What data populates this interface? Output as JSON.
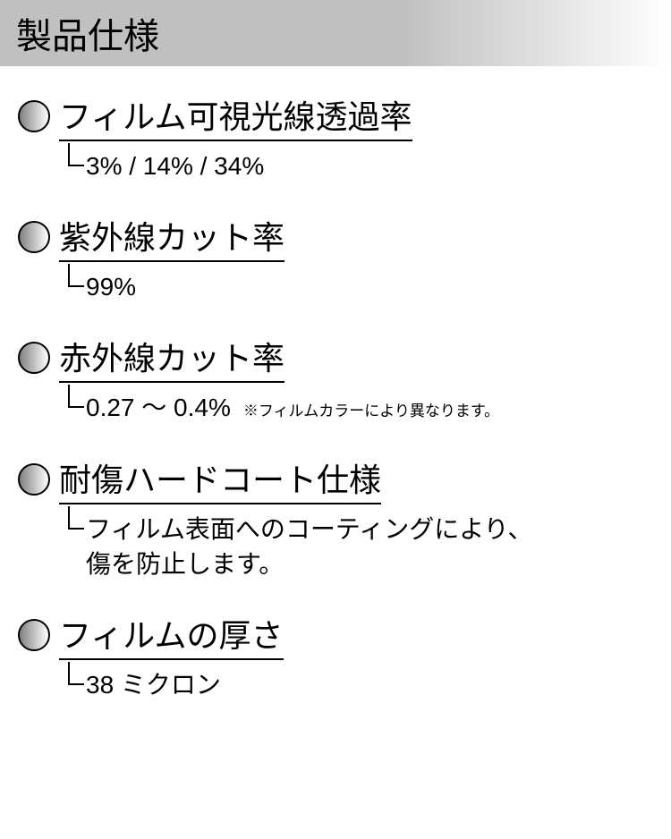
{
  "header": {
    "title": "製品仕様"
  },
  "specs": [
    {
      "title": "フィルム可視光線透過率",
      "value": "3% / 14% / 34%",
      "note": ""
    },
    {
      "title": "紫外線カット率",
      "value": "99%",
      "note": ""
    },
    {
      "title": "赤外線カット率",
      "value": "0.27 〜 0.4%",
      "note": "※フィルムカラーにより異なります。"
    },
    {
      "title": "耐傷ハードコート仕様",
      "value": "フィルム表面へのコーティングにより、\n傷を防止します。",
      "note": ""
    },
    {
      "title": "フィルムの厚さ",
      "value": "38 ミクロン",
      "note": ""
    }
  ],
  "colors": {
    "header_gradient_start": "#c0c0c0",
    "header_gradient_end": "#ffffff",
    "bullet_gradient_start": "#808080",
    "bullet_gradient_end": "#ffffff",
    "text": "#000000",
    "background": "#ffffff"
  },
  "typography": {
    "header_fontsize": 40,
    "title_fontsize": 36,
    "value_fontsize": 28,
    "note_fontsize": 17
  }
}
